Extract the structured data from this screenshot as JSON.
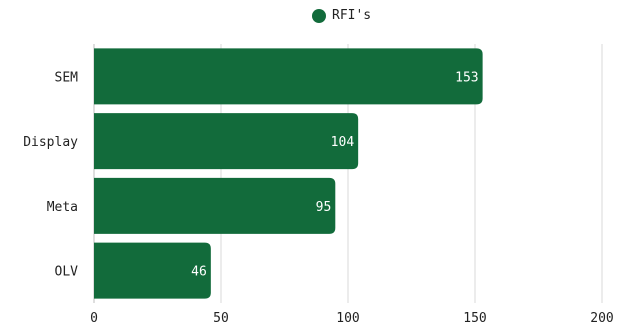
{
  "chart_data": {
    "type": "bar",
    "orientation": "horizontal",
    "categories": [
      "SEM",
      "Display",
      "Meta",
      "OLV"
    ],
    "series": [
      {
        "name": "RFI's",
        "values": [
          153,
          104,
          95,
          46
        ],
        "color": "#126b3b"
      }
    ],
    "xlim": [
      0,
      200
    ],
    "xticks": [
      0,
      50,
      100,
      150,
      200
    ],
    "grid": true,
    "legend_position": "top"
  }
}
